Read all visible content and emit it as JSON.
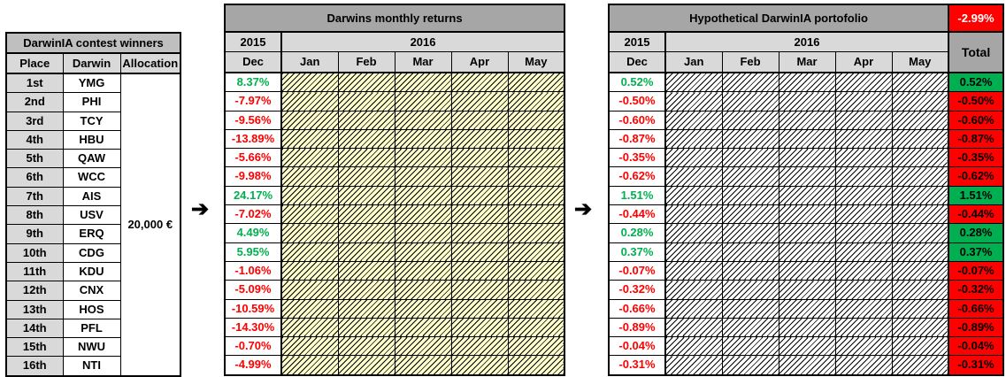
{
  "colors": {
    "positive_text": "#00b050",
    "negative_text": "#ff0000",
    "positive_fill": "#00b050",
    "negative_fill": "#ff0000",
    "title_gray": "#a6a6a6",
    "header_gray": "#d9d9d9",
    "hatch_yellow": "#ffffcc"
  },
  "arrow_glyph": "➔",
  "winners_table": {
    "title": "DarwinIA  contest winners",
    "headers": [
      "Place",
      "Darwin",
      "Allocation"
    ],
    "allocation": "20,000 €",
    "rows": [
      {
        "place": "1st",
        "darwin": "YMG"
      },
      {
        "place": "2nd",
        "darwin": "PHI"
      },
      {
        "place": "3rd",
        "darwin": "TCY"
      },
      {
        "place": "4th",
        "darwin": "HBU"
      },
      {
        "place": "5th",
        "darwin": "QAW"
      },
      {
        "place": "6th",
        "darwin": "WCC"
      },
      {
        "place": "7th",
        "darwin": "AIS"
      },
      {
        "place": "8th",
        "darwin": "USV"
      },
      {
        "place": "9th",
        "darwin": "ERQ"
      },
      {
        "place": "10th",
        "darwin": "CDG"
      },
      {
        "place": "11th",
        "darwin": "KDU"
      },
      {
        "place": "12th",
        "darwin": "CNX"
      },
      {
        "place": "13th",
        "darwin": "HOS"
      },
      {
        "place": "14th",
        "darwin": "PFL"
      },
      {
        "place": "15th",
        "darwin": "NWU"
      },
      {
        "place": "16th",
        "darwin": "NTI"
      }
    ]
  },
  "returns_table": {
    "title": "Darwins monthly returns",
    "year_2015": "2015",
    "year_2016": "2016",
    "months": [
      "Dec",
      "Jan",
      "Feb",
      "Mar",
      "Apr",
      "May"
    ],
    "dec_values": [
      "8.37%",
      "-7.97%",
      "-9.56%",
      "-13.89%",
      "-5.66%",
      "-9.98%",
      "24.17%",
      "-7.02%",
      "4.49%",
      "5.95%",
      "-1.06%",
      "-5.09%",
      "-10.59%",
      "-14.30%",
      "-0.70%",
      "-4.99%"
    ]
  },
  "portfolio_table": {
    "title": "Hypothetical DarwinIA portofolio",
    "grand_total": "-2.99%",
    "year_2015": "2015",
    "year_2016": "2016",
    "months": [
      "Dec",
      "Jan",
      "Feb",
      "Mar",
      "Apr",
      "May"
    ],
    "total_header": "Total",
    "dec_values": [
      "0.52%",
      "-0.50%",
      "-0.60%",
      "-0.87%",
      "-0.35%",
      "-0.62%",
      "1.51%",
      "-0.44%",
      "0.28%",
      "0.37%",
      "-0.07%",
      "-0.32%",
      "-0.66%",
      "-0.89%",
      "-0.04%",
      "-0.31%"
    ],
    "total_values": [
      "0.52%",
      "-0.50%",
      "-0.60%",
      "-0.87%",
      "-0.35%",
      "-0.62%",
      "1.51%",
      "-0.44%",
      "0.28%",
      "0.37%",
      "-0.07%",
      "-0.32%",
      "-0.66%",
      "-0.89%",
      "-0.04%",
      "-0.31%"
    ]
  }
}
